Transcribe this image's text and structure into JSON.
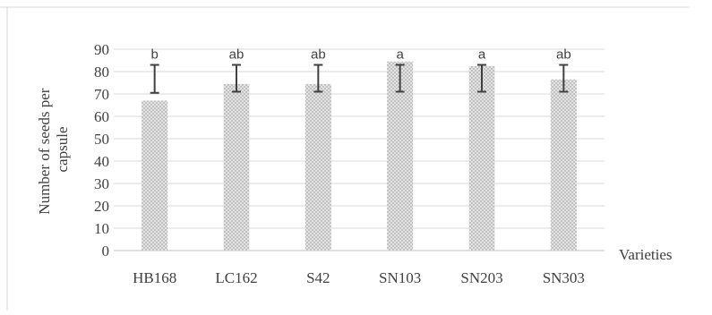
{
  "chart_data": {
    "type": "bar",
    "title": "",
    "xlabel": "Varieties",
    "ylabel": "Number of seeds per capsule",
    "ylim": [
      0,
      90
    ],
    "y_ticks": [
      0,
      10,
      20,
      30,
      40,
      50,
      60,
      70,
      80,
      90
    ],
    "grid": true,
    "legend": "none",
    "categories": [
      "HB168",
      "LC162",
      "S42",
      "SN103",
      "SN203",
      "SN303"
    ],
    "values": [
      67,
      74.5,
      74.5,
      84.5,
      82.5,
      76.5
    ],
    "error_bars": [
      {
        "low": 70.5,
        "high": 83
      },
      {
        "low": 71,
        "high": 83
      },
      {
        "low": 71,
        "high": 83
      },
      {
        "low": 71,
        "high": 83
      },
      {
        "low": 71,
        "high": 83
      },
      {
        "low": 71,
        "high": 83
      }
    ],
    "significance_labels": [
      "b",
      "ab",
      "ab",
      "a",
      "a",
      "ab"
    ],
    "colors": {
      "bar_fill": "#e4e4e4",
      "bar_dots": "#8c8c8c",
      "error_bar": "#404040",
      "grid": "#d9d9d9",
      "axis": "#bfbfbf",
      "text": "#404040"
    }
  }
}
